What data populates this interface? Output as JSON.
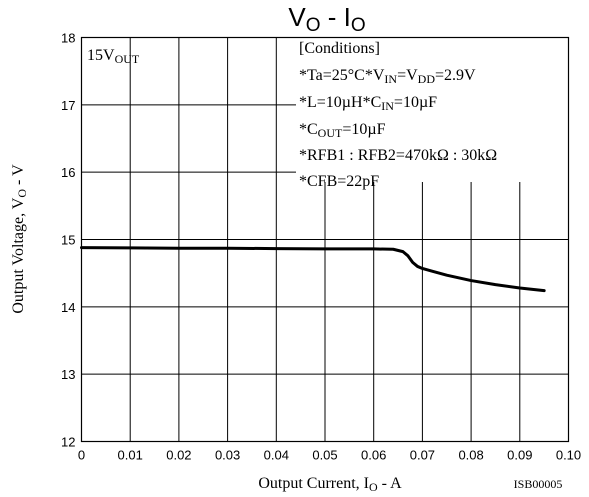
{
  "chart_data": {
    "type": "line",
    "title": {
      "main": "V",
      "sub1": "O",
      "mid": " - I",
      "sub2": "O"
    },
    "xlabel": {
      "pre": "Output Current, I",
      "sub": "O",
      "post": " - A"
    },
    "ylabel": {
      "pre": "Output Voltage, V",
      "sub": "O",
      "post": " - V"
    },
    "xlim": [
      0,
      0.1
    ],
    "ylim": [
      12,
      18
    ],
    "x_ticks": [
      0,
      0.01,
      0.02,
      0.03,
      0.04,
      0.05,
      0.06,
      0.07,
      0.08,
      0.09,
      0.1
    ],
    "x_tick_labels": [
      "0",
      "0.01",
      "0.02",
      "0.03",
      "0.04",
      "0.05",
      "0.06",
      "0.07",
      "0.08",
      "0.09",
      "0.10"
    ],
    "y_ticks": [
      12,
      13,
      14,
      15,
      16,
      17,
      18
    ],
    "y_tick_labels": [
      "12",
      "13",
      "14",
      "15",
      "16",
      "17",
      "18"
    ],
    "grid": true,
    "series": [
      {
        "x": [
          0,
          0.01,
          0.02,
          0.03,
          0.04,
          0.05,
          0.06,
          0.064,
          0.066,
          0.067,
          0.068,
          0.069,
          0.07,
          0.072,
          0.075,
          0.08,
          0.085,
          0.09,
          0.095
        ],
        "y": [
          14.88,
          14.875,
          14.87,
          14.87,
          14.865,
          14.86,
          14.86,
          14.855,
          14.82,
          14.76,
          14.66,
          14.6,
          14.57,
          14.53,
          14.47,
          14.39,
          14.33,
          14.28,
          14.24
        ]
      }
    ],
    "annotations": {
      "label": {
        "pre": "15V",
        "sub": "OUT"
      },
      "conditions": {
        "header": "[Conditions]",
        "l1a": "*Ta=25°C*V",
        "l1b": "IN",
        "l1c": "=V",
        "l1d": "DD",
        "l1e": "=2.9V",
        "l2a": "*L=10µH*C",
        "l2b": "IN",
        "l2c": "=10µF",
        "l3a": "*C",
        "l3b": "OUT",
        "l3c": "=10µF",
        "l4": "*RFB1 : RFB2=470kΩ : 30kΩ",
        "l5": "*CFB=22pF"
      },
      "code": "ISB00005"
    }
  }
}
